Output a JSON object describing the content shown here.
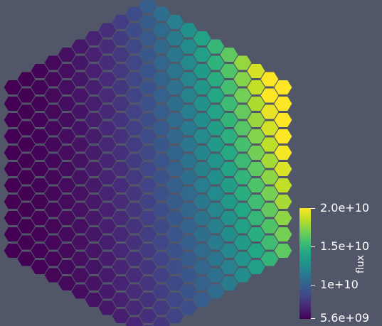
{
  "viewer": {
    "background_color": "#525669",
    "field": "flux"
  },
  "colorbar": {
    "title": "flux",
    "colormap": "viridis",
    "range": [
      5600000000.0,
      20000000000.0
    ],
    "ticks": [
      {
        "value": 20000000000.0,
        "label": "2.0e+10"
      },
      {
        "value": 15000000000.0,
        "label": "1.5e+10"
      },
      {
        "value": 10000000000.0,
        "label": "1e+10"
      },
      {
        "value": 5600000000.0,
        "label": "5.6e+09"
      }
    ]
  },
  "mesh": {
    "description_type": "hexagonal-lattice",
    "rings": 10,
    "value_min": 5600000000.0,
    "value_max": 20000000000.0
  }
}
